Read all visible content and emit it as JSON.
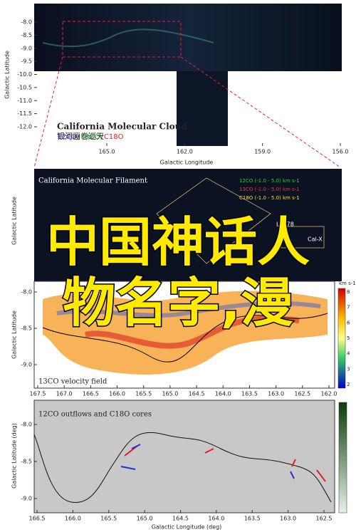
{
  "panel1": {
    "title": "California Molecular Cloud",
    "subtitle": "银河画卷巡天",
    "legend": [
      "12CO",
      "/",
      "13CO",
      "/",
      "C18O"
    ],
    "xlabel": "Galactic Longitude",
    "ylabel": "Galactic Latitude",
    "xticks": [
      "165.0",
      "162.0",
      "159.0",
      "156.0"
    ],
    "yticks": [
      "-8.0",
      "-8.5",
      "-9.0",
      "-9.5",
      "-10.0",
      "-10.5",
      "-11.0",
      "-11.5",
      "-12.0"
    ]
  },
  "panel2": {
    "title": "California Molecular Filament",
    "ylabel": "Galactic Latitude",
    "legend": [
      "12CO (-1.0 - 5.0) km s-1",
      "13CO (-1.0 - 5.0) km s-1",
      "C18O (-1.0 - 5.0) km s-1"
    ],
    "labels": [
      "L1478",
      "Cal-X"
    ]
  },
  "panel3": {
    "title": "13CO velocity field",
    "ylabel": "Galactic Latitude",
    "colorbar_unit": "km s-1",
    "colorbar_ticks": [
      "8",
      "7",
      "6",
      "5",
      "4",
      "3",
      "2"
    ],
    "yticks": [
      "-8.0",
      "-8.5",
      "-9.0"
    ],
    "xticks": [
      "167.5",
      "167.0",
      "166.5",
      "166.0",
      "165.5",
      "165.0",
      "164.5",
      "164.0",
      "163.5",
      "163.0",
      "162.5",
      "162.0"
    ]
  },
  "panel4": {
    "title": "12CO outflows and C18O cores",
    "xlabel": "Galactic Longitude (deg)",
    "ylabel": "Galactic Latitude (deg)",
    "yticks": [
      "-8.0",
      "-8.5",
      "-9.0"
    ],
    "xticks": [
      "166.5",
      "166.0",
      "165.5",
      "165.0",
      "164.5",
      "164.0",
      "163.5",
      "163.0",
      "162.5"
    ]
  },
  "overlay": [
    "中国神话人",
    "物名字,漫"
  ]
}
